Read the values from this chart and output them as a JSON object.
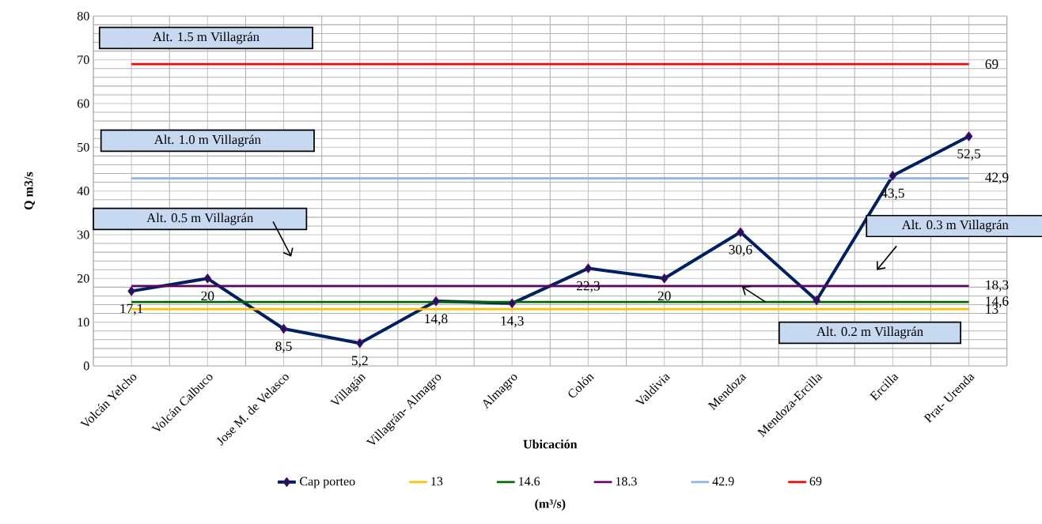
{
  "chart_data": {
    "type": "line",
    "categories": [
      "Volcán Yelcho",
      "Volcán Calbuco",
      "Jose M. de Velasco",
      "Villagán",
      "Villagrán- Almagro",
      "Almagro",
      "Colón",
      "Valdivia",
      "Mendoza",
      "Mendoza-Ercilla",
      "Ercilla",
      "Prat- Urenda"
    ],
    "series": [
      {
        "name": "Cap porteo",
        "color": "#002060",
        "marker": "diamond",
        "values": [
          17.1,
          20,
          8.5,
          5.2,
          14.8,
          14.3,
          22.3,
          20,
          30.6,
          15,
          43.5,
          52.5
        ],
        "value_labels": [
          "17,1",
          "20",
          "8,5",
          "5,2",
          "14,8",
          "14,3",
          "22,3",
          "20",
          "30,6",
          null,
          "43,5",
          "52,5"
        ]
      },
      {
        "name": "13",
        "color": "#ffc000",
        "marker": "none",
        "values": [
          13,
          13,
          13,
          13,
          13,
          13,
          13,
          13,
          13,
          13,
          13,
          13
        ],
        "value_labels": [
          null,
          null,
          null,
          null,
          null,
          null,
          null,
          null,
          null,
          null,
          null,
          "13"
        ]
      },
      {
        "name": "14.6",
        "color": "#006600",
        "marker": "none",
        "values": [
          14.6,
          14.6,
          14.6,
          14.6,
          14.6,
          14.6,
          14.6,
          14.6,
          14.6,
          14.6,
          14.6,
          14.6
        ],
        "value_labels": [
          null,
          null,
          null,
          null,
          null,
          null,
          null,
          null,
          null,
          null,
          null,
          "14,6"
        ]
      },
      {
        "name": "18.3",
        "color": "#660066",
        "marker": "none",
        "values": [
          18.3,
          18.3,
          18.3,
          18.3,
          18.3,
          18.3,
          18.3,
          18.3,
          18.3,
          18.3,
          18.3,
          18.3
        ],
        "value_labels": [
          null,
          null,
          null,
          null,
          null,
          null,
          null,
          null,
          null,
          null,
          null,
          "18,3"
        ]
      },
      {
        "name": "42.9",
        "color": "#8db4e2",
        "marker": "none",
        "values": [
          42.9,
          42.9,
          42.9,
          42.9,
          42.9,
          42.9,
          42.9,
          42.9,
          42.9,
          42.9,
          42.9,
          42.9
        ],
        "value_labels": [
          null,
          null,
          null,
          null,
          null,
          null,
          null,
          null,
          null,
          null,
          null,
          "42,9"
        ]
      },
      {
        "name": "69",
        "color": "#ff0000",
        "marker": "none",
        "values": [
          69,
          69,
          69,
          69,
          69,
          69,
          69,
          69,
          69,
          69,
          69,
          69
        ],
        "value_labels": [
          null,
          null,
          null,
          null,
          null,
          null,
          null,
          null,
          null,
          null,
          null,
          "69"
        ]
      }
    ],
    "xlabel": "Ubicación",
    "ylabel": "Q m3/s",
    "ylim": [
      0,
      80
    ],
    "yticks": [
      0,
      10,
      20,
      30,
      40,
      50,
      60,
      70,
      80
    ],
    "grid": true,
    "legend": "bottom",
    "annotations": [
      "Alt. 1.5 m Villagrán",
      "Alt. 1.0 m Villagrán",
      "Alt. 0.5 m Villagrán",
      "Alt. 0.3 m Villagrán",
      "Alt. 0.2  m Villagrán",
      "(m³/s)"
    ]
  }
}
